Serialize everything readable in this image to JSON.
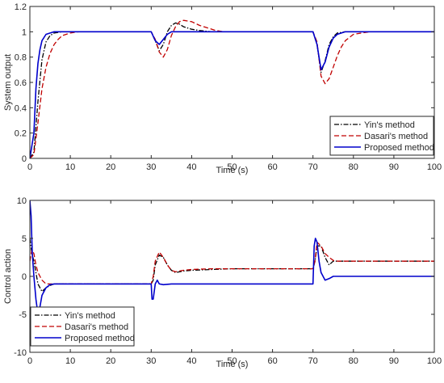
{
  "chart_data": [
    {
      "type": "line",
      "xlabel": "Time (s)",
      "ylabel": "System output",
      "xlim": [
        0,
        100
      ],
      "ylim": [
        0,
        1.2
      ],
      "xticks": [
        0,
        10,
        20,
        30,
        40,
        50,
        60,
        70,
        80,
        90,
        100
      ],
      "yticks": [
        0,
        0.2,
        0.4,
        0.6,
        0.8,
        1,
        1.2
      ],
      "ytick_labels": [
        "0",
        "0.2",
        "0.4",
        "0.6",
        "0.8",
        "1",
        "1.2"
      ],
      "grid": false,
      "legend_position": "bottom-right",
      "series": [
        {
          "name": "Yin's method",
          "color": "#000000",
          "dash": "dash-dot",
          "x": [
            0,
            1,
            2,
            3,
            4,
            5,
            6,
            8,
            10,
            20,
            30,
            31,
            32,
            33,
            34,
            35,
            36,
            37,
            38,
            40,
            42,
            45,
            50,
            60,
            70,
            71,
            72,
            73,
            74,
            75,
            76,
            78,
            80,
            90,
            100
          ],
          "y": [
            0,
            0.05,
            0.45,
            0.78,
            0.92,
            0.97,
            0.99,
            1.0,
            1.0,
            1.0,
            1.0,
            0.93,
            0.85,
            0.9,
            1.0,
            1.05,
            1.07,
            1.06,
            1.04,
            1.02,
            1.01,
            1.0,
            1.0,
            1.0,
            1.0,
            0.9,
            0.68,
            0.77,
            0.9,
            0.96,
            0.99,
            1.0,
            1.0,
            1.0,
            1.0
          ]
        },
        {
          "name": "Dasari's method",
          "color": "#c00000",
          "dash": "dash",
          "x": [
            0,
            1,
            2,
            3,
            4,
            5,
            6,
            7,
            8,
            10,
            12,
            20,
            30,
            31,
            32,
            33,
            34,
            35,
            36,
            37,
            38,
            40,
            42,
            44,
            46,
            48,
            50,
            60,
            70,
            71,
            72,
            73,
            74,
            75,
            76,
            77,
            78,
            80,
            82,
            84,
            90,
            100
          ],
          "y": [
            0,
            0.03,
            0.28,
            0.55,
            0.72,
            0.83,
            0.9,
            0.94,
            0.97,
            0.99,
            1.0,
            1.0,
            1.0,
            0.94,
            0.84,
            0.8,
            0.86,
            0.97,
            1.04,
            1.08,
            1.09,
            1.08,
            1.05,
            1.03,
            1.01,
            1.0,
            1.0,
            1.0,
            1.0,
            0.92,
            0.65,
            0.59,
            0.63,
            0.72,
            0.81,
            0.88,
            0.93,
            0.98,
            0.99,
            1.0,
            1.0,
            1.0
          ]
        },
        {
          "name": "Proposed method",
          "color": "#0000cc",
          "dash": "solid",
          "x": [
            0,
            1,
            1.5,
            2,
            2.5,
            3,
            4,
            5,
            6,
            10,
            20,
            30,
            31,
            32,
            33,
            34,
            35,
            36,
            40,
            50,
            60,
            70,
            71,
            72,
            73,
            74,
            75,
            76,
            78,
            80,
            90,
            100
          ],
          "y": [
            0,
            0.2,
            0.55,
            0.75,
            0.86,
            0.93,
            0.98,
            0.99,
            1.0,
            1.0,
            1.0,
            1.0,
            0.93,
            0.9,
            0.94,
            0.98,
            1.0,
            1.0,
            1.0,
            1.0,
            1.0,
            1.0,
            0.9,
            0.7,
            0.76,
            0.88,
            0.95,
            0.98,
            1.0,
            1.0,
            1.0,
            1.0
          ]
        }
      ]
    },
    {
      "type": "line",
      "xlabel": "Time (s)",
      "ylabel": "Control action",
      "xlim": [
        0,
        100
      ],
      "ylim": [
        -10,
        10
      ],
      "xticks": [
        0,
        10,
        20,
        30,
        40,
        50,
        60,
        70,
        80,
        90,
        100
      ],
      "yticks": [
        -10,
        -5,
        0,
        5,
        10
      ],
      "ytick_labels": [
        "-10",
        "-5",
        "0",
        "5",
        "10"
      ],
      "grid": false,
      "legend_position": "bottom-left",
      "series": [
        {
          "name": "Yin's method",
          "color": "#000000",
          "dash": "dash-dot",
          "x": [
            0,
            0.5,
            1,
            1.5,
            2,
            3,
            4,
            5,
            6,
            8,
            10,
            20,
            30,
            30.5,
            31,
            32,
            33,
            34,
            35,
            36,
            37,
            38,
            40,
            45,
            50,
            60,
            70,
            70.5,
            71,
            72,
            73,
            74,
            75,
            76,
            78,
            80,
            90,
            100
          ],
          "y": [
            5,
            3,
            2,
            0.5,
            -1,
            -2,
            -1.5,
            -1.2,
            -1,
            -1,
            -1,
            -1,
            -1,
            -0.5,
            1.5,
            2.8,
            2.5,
            1.5,
            0.8,
            0.5,
            0.6,
            0.7,
            0.8,
            0.9,
            1,
            1,
            1,
            2,
            4,
            4,
            2.5,
            1.5,
            2,
            2,
            2,
            2,
            2,
            2
          ]
        },
        {
          "name": "Dasari's method",
          "color": "#c00000",
          "dash": "dash",
          "x": [
            0,
            0.5,
            1,
            1.5,
            2,
            3,
            4,
            5,
            6,
            8,
            10,
            20,
            30,
            30.5,
            31,
            32,
            33,
            34,
            35,
            36,
            37,
            38,
            40,
            45,
            50,
            60,
            70,
            70.5,
            71,
            72,
            73,
            74,
            75,
            76,
            78,
            80,
            90,
            100
          ],
          "y": [
            2,
            3.5,
            3,
            1.5,
            0.5,
            -0.5,
            -1,
            -1,
            -1,
            -1,
            -1,
            -1,
            -1,
            0,
            2,
            3.2,
            2.5,
            1.5,
            0.8,
            0.6,
            0.7,
            0.8,
            0.9,
            1,
            1,
            1,
            1,
            2,
            4.5,
            4,
            3,
            2.5,
            2.1,
            2,
            2,
            2,
            2,
            2
          ]
        },
        {
          "name": "Proposed method",
          "color": "#0000cc",
          "dash": "solid",
          "x": [
            0,
            0.3,
            0.6,
            1,
            1.5,
            2,
            2.5,
            3,
            4,
            5,
            6,
            10,
            20,
            30,
            30.2,
            30.5,
            31,
            31.5,
            32,
            33,
            35,
            40,
            50,
            60,
            70,
            70.3,
            70.6,
            71,
            71.5,
            72,
            73,
            74,
            75,
            76,
            80,
            90,
            100
          ],
          "y": [
            10,
            8,
            3,
            0,
            -3,
            -5,
            -4,
            -2.5,
            -1.5,
            -1.1,
            -1,
            -1,
            -1,
            -1,
            -3,
            -3,
            -1,
            -0.5,
            -1,
            -1.1,
            -1,
            -1,
            -1,
            -1,
            -1,
            4,
            5,
            4.5,
            2,
            0.5,
            -0.5,
            -0.3,
            0,
            0,
            0,
            0,
            0
          ]
        }
      ]
    }
  ]
}
